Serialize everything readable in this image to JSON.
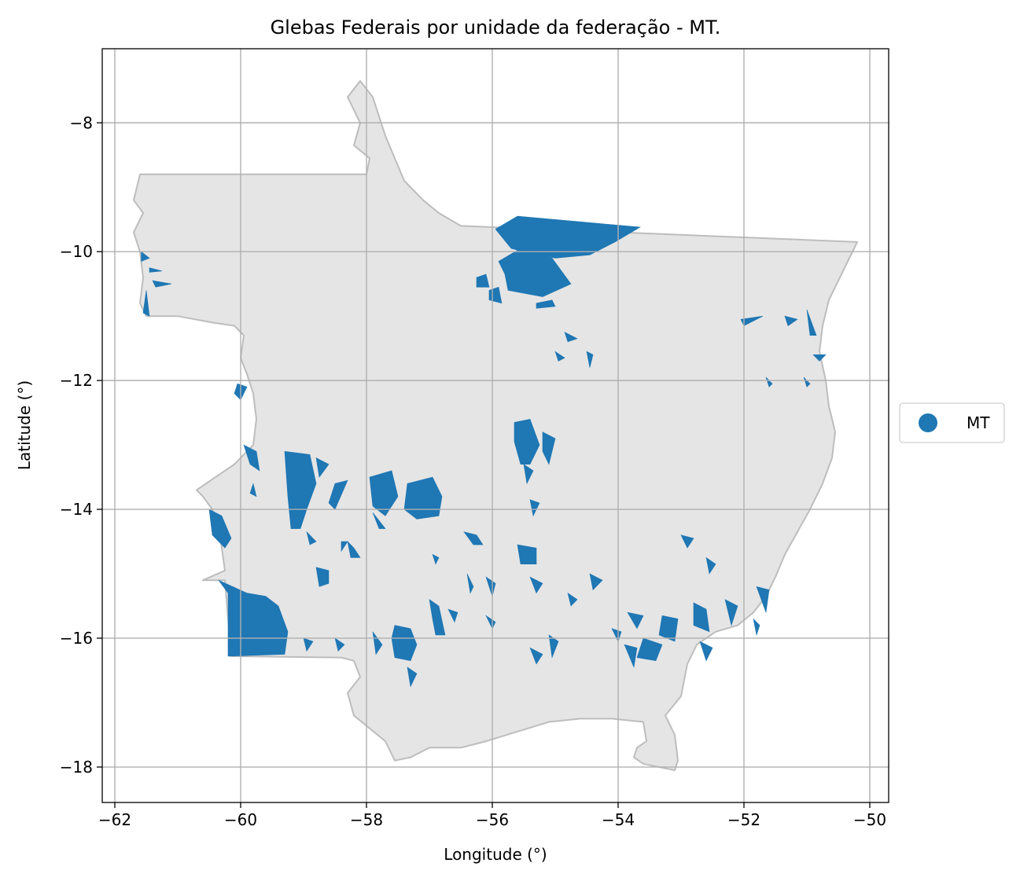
{
  "chart_data": {
    "type": "map",
    "title": "Glebas Federais por unidade da federação - MT.",
    "xlabel": "Longitude (°)",
    "ylabel": "Latitude (°)",
    "xlim": [
      -62.2,
      -49.7
    ],
    "ylim": [
      -18.55,
      -6.85
    ],
    "x_ticks": [
      -62,
      -60,
      -58,
      -56,
      -54,
      -52,
      -50
    ],
    "y_ticks": [
      -8,
      -10,
      -12,
      -14,
      -16,
      -18
    ],
    "x_tick_labels": [
      "−62",
      "−60",
      "−58",
      "−56",
      "−54",
      "−52",
      "−50"
    ],
    "y_tick_labels": [
      "−8",
      "−10",
      "−12",
      "−14",
      "−16",
      "−18"
    ],
    "grid": true,
    "legend_position": "right",
    "colors": {
      "state_fill": "#e5e5e5",
      "state_edge": "#bdbdbd",
      "glebas": "#1f77b4",
      "grid": "#b0b0b0"
    },
    "series": [
      {
        "name": "MT"
      }
    ],
    "state_outline": [
      [
        -61.6,
        -8.8
      ],
      [
        -58.0,
        -8.8
      ],
      [
        -57.95,
        -8.55
      ],
      [
        -58.2,
        -8.35
      ],
      [
        -58.1,
        -8.0
      ],
      [
        -58.3,
        -7.6
      ],
      [
        -58.1,
        -7.35
      ],
      [
        -57.9,
        -7.6
      ],
      [
        -57.7,
        -8.2
      ],
      [
        -57.4,
        -8.9
      ],
      [
        -57.1,
        -9.2
      ],
      [
        -56.85,
        -9.4
      ],
      [
        -56.5,
        -9.6
      ],
      [
        -50.2,
        -9.85
      ],
      [
        -50.35,
        -10.15
      ],
      [
        -50.5,
        -10.45
      ],
      [
        -50.65,
        -10.75
      ],
      [
        -50.75,
        -11.15
      ],
      [
        -50.8,
        -11.55
      ],
      [
        -50.7,
        -12.0
      ],
      [
        -50.65,
        -12.4
      ],
      [
        -50.55,
        -12.8
      ],
      [
        -50.6,
        -13.2
      ],
      [
        -50.75,
        -13.6
      ],
      [
        -50.95,
        -14.0
      ],
      [
        -51.15,
        -14.35
      ],
      [
        -51.35,
        -14.7
      ],
      [
        -51.5,
        -15.05
      ],
      [
        -51.65,
        -15.35
      ],
      [
        -51.85,
        -15.6
      ],
      [
        -52.1,
        -15.8
      ],
      [
        -52.45,
        -15.9
      ],
      [
        -52.75,
        -16.1
      ],
      [
        -52.9,
        -16.4
      ],
      [
        -53.0,
        -16.9
      ],
      [
        -53.25,
        -17.2
      ],
      [
        -53.1,
        -17.5
      ],
      [
        -53.05,
        -17.9
      ],
      [
        -53.1,
        -18.05
      ],
      [
        -53.6,
        -17.95
      ],
      [
        -53.75,
        -17.85
      ],
      [
        -53.7,
        -17.7
      ],
      [
        -53.55,
        -17.6
      ],
      [
        -53.6,
        -17.3
      ],
      [
        -54.1,
        -17.25
      ],
      [
        -54.6,
        -17.25
      ],
      [
        -55.1,
        -17.3
      ],
      [
        -55.6,
        -17.45
      ],
      [
        -56.1,
        -17.6
      ],
      [
        -56.5,
        -17.7
      ],
      [
        -57.0,
        -17.7
      ],
      [
        -57.3,
        -17.85
      ],
      [
        -57.55,
        -17.9
      ],
      [
        -57.7,
        -17.6
      ],
      [
        -57.95,
        -17.4
      ],
      [
        -58.2,
        -17.2
      ],
      [
        -58.3,
        -16.85
      ],
      [
        -58.1,
        -16.6
      ],
      [
        -58.2,
        -16.35
      ],
      [
        -58.4,
        -16.3
      ],
      [
        -60.15,
        -16.28
      ],
      [
        -60.25,
        -15.1
      ],
      [
        -60.6,
        -15.1
      ],
      [
        -60.25,
        -14.95
      ],
      [
        -60.3,
        -14.6
      ],
      [
        -60.35,
        -14.3
      ],
      [
        -60.45,
        -14.0
      ],
      [
        -60.6,
        -13.8
      ],
      [
        -60.7,
        -13.7
      ],
      [
        -60.4,
        -13.5
      ],
      [
        -60.1,
        -13.3
      ],
      [
        -59.8,
        -13.0
      ],
      [
        -59.75,
        -12.6
      ],
      [
        -59.8,
        -12.2
      ],
      [
        -59.9,
        -11.9
      ],
      [
        -60.0,
        -11.65
      ],
      [
        -59.95,
        -11.3
      ],
      [
        -60.1,
        -11.15
      ],
      [
        -60.45,
        -11.1
      ],
      [
        -61.0,
        -11.0
      ],
      [
        -61.5,
        -11.0
      ],
      [
        -61.6,
        -10.8
      ],
      [
        -61.55,
        -10.4
      ],
      [
        -61.6,
        -10.0
      ],
      [
        -61.7,
        -9.7
      ],
      [
        -61.55,
        -9.4
      ],
      [
        -61.7,
        -9.2
      ]
    ],
    "glebas": [
      [
        [
          -55.95,
          -9.65
        ],
        [
          -55.6,
          -9.45
        ],
        [
          -53.65,
          -9.62
        ],
        [
          -54.05,
          -9.85
        ],
        [
          -54.45,
          -10.05
        ],
        [
          -55.0,
          -10.1
        ],
        [
          -55.5,
          -10.0
        ],
        [
          -55.7,
          -9.95
        ]
      ],
      [
        [
          -55.9,
          -10.15
        ],
        [
          -55.55,
          -9.95
        ],
        [
          -55.05,
          -10.1
        ],
        [
          -54.75,
          -10.5
        ],
        [
          -55.2,
          -10.7
        ],
        [
          -55.75,
          -10.6
        ],
        [
          -55.8,
          -10.35
        ]
      ],
      [
        [
          -56.25,
          -10.4
        ],
        [
          -56.1,
          -10.35
        ],
        [
          -56.05,
          -10.55
        ],
        [
          -56.25,
          -10.55
        ]
      ],
      [
        [
          -56.05,
          -10.6
        ],
        [
          -55.9,
          -10.55
        ],
        [
          -55.85,
          -10.8
        ],
        [
          -56.05,
          -10.75
        ]
      ],
      [
        [
          -55.3,
          -10.8
        ],
        [
          -55.05,
          -10.75
        ],
        [
          -55.0,
          -10.85
        ],
        [
          -55.3,
          -10.88
        ]
      ],
      [
        [
          -61.58,
          -10.0
        ],
        [
          -61.45,
          -10.1
        ],
        [
          -61.58,
          -10.15
        ]
      ],
      [
        [
          -61.4,
          -10.45
        ],
        [
          -61.1,
          -10.5
        ],
        [
          -61.35,
          -10.55
        ]
      ],
      [
        [
          -61.5,
          -10.6
        ],
        [
          -61.45,
          -11.0
        ],
        [
          -61.55,
          -10.95
        ]
      ],
      [
        [
          -61.45,
          -10.25
        ],
        [
          -61.25,
          -10.3
        ],
        [
          -61.45,
          -10.32
        ]
      ],
      [
        [
          -60.05,
          -12.05
        ],
        [
          -59.9,
          -12.1
        ],
        [
          -60.0,
          -12.3
        ],
        [
          -60.1,
          -12.2
        ]
      ],
      [
        [
          -59.95,
          -13.0
        ],
        [
          -59.75,
          -13.1
        ],
        [
          -59.7,
          -13.4
        ],
        [
          -59.85,
          -13.3
        ]
      ],
      [
        [
          -59.8,
          -13.6
        ],
        [
          -59.75,
          -13.8
        ],
        [
          -59.85,
          -13.75
        ]
      ],
      [
        [
          -59.3,
          -13.1
        ],
        [
          -58.9,
          -13.15
        ],
        [
          -58.8,
          -13.6
        ],
        [
          -58.95,
          -14.0
        ],
        [
          -59.05,
          -14.3
        ],
        [
          -59.2,
          -14.3
        ],
        [
          -59.25,
          -13.8
        ]
      ],
      [
        [
          -58.95,
          -14.35
        ],
        [
          -58.8,
          -14.5
        ],
        [
          -58.9,
          -14.55
        ]
      ],
      [
        [
          -58.8,
          -13.2
        ],
        [
          -58.6,
          -13.3
        ],
        [
          -58.75,
          -13.5
        ]
      ],
      [
        [
          -58.5,
          -13.6
        ],
        [
          -58.3,
          -13.55
        ],
        [
          -58.5,
          -14.0
        ],
        [
          -58.6,
          -13.9
        ]
      ],
      [
        [
          -60.5,
          -14.0
        ],
        [
          -60.3,
          -14.1
        ],
        [
          -60.15,
          -14.45
        ],
        [
          -60.25,
          -14.6
        ],
        [
          -60.45,
          -14.4
        ]
      ],
      [
        [
          -58.8,
          -14.9
        ],
        [
          -58.6,
          -14.95
        ],
        [
          -58.6,
          -15.15
        ],
        [
          -58.75,
          -15.2
        ]
      ],
      [
        [
          -58.3,
          -14.5
        ],
        [
          -58.2,
          -14.6
        ],
        [
          -58.1,
          -14.75
        ],
        [
          -58.25,
          -14.75
        ]
      ],
      [
        [
          -57.95,
          -13.5
        ],
        [
          -57.6,
          -13.4
        ],
        [
          -57.5,
          -13.8
        ],
        [
          -57.7,
          -14.1
        ],
        [
          -57.9,
          -13.95
        ]
      ],
      [
        [
          -57.9,
          -14.05
        ],
        [
          -57.7,
          -14.3
        ],
        [
          -57.8,
          -14.3
        ]
      ],
      [
        [
          -57.35,
          -13.6
        ],
        [
          -56.95,
          -13.5
        ],
        [
          -56.8,
          -13.8
        ],
        [
          -56.85,
          -14.1
        ],
        [
          -57.2,
          -14.15
        ],
        [
          -57.4,
          -14.0
        ]
      ],
      [
        [
          -55.65,
          -12.65
        ],
        [
          -55.4,
          -12.6
        ],
        [
          -55.25,
          -13.0
        ],
        [
          -55.4,
          -13.3
        ],
        [
          -55.55,
          -13.3
        ],
        [
          -55.65,
          -12.95
        ]
      ],
      [
        [
          -55.5,
          -13.3
        ],
        [
          -55.35,
          -13.4
        ],
        [
          -55.45,
          -13.6
        ]
      ],
      [
        [
          -55.2,
          -12.8
        ],
        [
          -55.0,
          -12.9
        ],
        [
          -55.1,
          -13.3
        ],
        [
          -55.2,
          -13.1
        ]
      ],
      [
        [
          -60.35,
          -15.1
        ],
        [
          -60.2,
          -15.3
        ],
        [
          -60.2,
          -16.28
        ],
        [
          -59.3,
          -16.25
        ],
        [
          -59.25,
          -15.9
        ],
        [
          -59.4,
          -15.5
        ],
        [
          -59.6,
          -15.35
        ],
        [
          -59.9,
          -15.3
        ]
      ],
      [
        [
          -58.3,
          -14.5
        ],
        [
          -58.4,
          -14.5
        ],
        [
          -58.4,
          -14.65
        ]
      ],
      [
        [
          -57.55,
          -15.8
        ],
        [
          -57.3,
          -15.85
        ],
        [
          -57.2,
          -16.1
        ],
        [
          -57.3,
          -16.35
        ],
        [
          -57.55,
          -16.3
        ],
        [
          -57.6,
          -16.0
        ]
      ],
      [
        [
          -57.9,
          -15.9
        ],
        [
          -57.75,
          -16.1
        ],
        [
          -57.85,
          -16.25
        ]
      ],
      [
        [
          -57.35,
          -16.45
        ],
        [
          -57.2,
          -16.55
        ],
        [
          -57.3,
          -16.75
        ]
      ],
      [
        [
          -57.0,
          -15.4
        ],
        [
          -56.85,
          -15.5
        ],
        [
          -56.75,
          -15.95
        ],
        [
          -56.9,
          -15.95
        ],
        [
          -56.95,
          -15.7
        ]
      ],
      [
        [
          -56.45,
          -14.35
        ],
        [
          -56.25,
          -14.4
        ],
        [
          -56.15,
          -14.55
        ],
        [
          -56.3,
          -14.55
        ]
      ],
      [
        [
          -56.1,
          -15.05
        ],
        [
          -55.95,
          -15.15
        ],
        [
          -56.0,
          -15.35
        ]
      ],
      [
        [
          -55.6,
          -14.55
        ],
        [
          -55.3,
          -14.6
        ],
        [
          -55.3,
          -14.85
        ],
        [
          -55.55,
          -14.85
        ]
      ],
      [
        [
          -55.4,
          -15.05
        ],
        [
          -55.2,
          -15.15
        ],
        [
          -55.3,
          -15.3
        ]
      ],
      [
        [
          -55.1,
          -15.95
        ],
        [
          -54.95,
          -16.05
        ],
        [
          -55.05,
          -16.3
        ]
      ],
      [
        [
          -55.4,
          -16.15
        ],
        [
          -55.2,
          -16.25
        ],
        [
          -55.3,
          -16.4
        ]
      ],
      [
        [
          -54.8,
          -15.3
        ],
        [
          -54.65,
          -15.4
        ],
        [
          -54.75,
          -15.5
        ]
      ],
      [
        [
          -54.45,
          -15.0
        ],
        [
          -54.25,
          -15.1
        ],
        [
          -54.4,
          -15.25
        ]
      ],
      [
        [
          -53.6,
          -16.0
        ],
        [
          -53.3,
          -16.1
        ],
        [
          -53.4,
          -16.35
        ],
        [
          -53.7,
          -16.3
        ]
      ],
      [
        [
          -53.3,
          -15.65
        ],
        [
          -53.05,
          -15.7
        ],
        [
          -53.1,
          -16.05
        ],
        [
          -53.35,
          -15.95
        ]
      ],
      [
        [
          -53.85,
          -15.6
        ],
        [
          -53.6,
          -15.65
        ],
        [
          -53.7,
          -15.85
        ]
      ],
      [
        [
          -52.8,
          -15.45
        ],
        [
          -52.6,
          -15.55
        ],
        [
          -52.55,
          -15.9
        ],
        [
          -52.8,
          -15.8
        ]
      ],
      [
        [
          -52.3,
          -15.4
        ],
        [
          -52.1,
          -15.5
        ],
        [
          -52.2,
          -15.8
        ]
      ],
      [
        [
          -52.7,
          -16.05
        ],
        [
          -52.5,
          -16.15
        ],
        [
          -52.6,
          -16.35
        ]
      ],
      [
        [
          -53.9,
          -16.1
        ],
        [
          -53.7,
          -16.15
        ],
        [
          -53.75,
          -16.45
        ]
      ],
      [
        [
          -52.6,
          -14.75
        ],
        [
          -52.45,
          -14.85
        ],
        [
          -52.55,
          -15.0
        ]
      ],
      [
        [
          -53.0,
          -14.4
        ],
        [
          -52.8,
          -14.45
        ],
        [
          -52.9,
          -14.6
        ]
      ],
      [
        [
          -51.8,
          -15.2
        ],
        [
          -51.6,
          -15.25
        ],
        [
          -51.65,
          -15.6
        ]
      ],
      [
        [
          -51.85,
          -15.7
        ],
        [
          -51.75,
          -15.8
        ],
        [
          -51.8,
          -15.95
        ]
      ],
      [
        [
          -52.05,
          -11.05
        ],
        [
          -51.7,
          -11.0
        ],
        [
          -52.0,
          -11.15
        ]
      ],
      [
        [
          -51.35,
          -11.0
        ],
        [
          -51.15,
          -11.05
        ],
        [
          -51.3,
          -11.15
        ]
      ],
      [
        [
          -51.0,
          -10.9
        ],
        [
          -50.85,
          -11.3
        ],
        [
          -50.95,
          -11.3
        ]
      ],
      [
        [
          -50.9,
          -11.6
        ],
        [
          -50.7,
          -11.6
        ],
        [
          -50.8,
          -11.7
        ]
      ],
      [
        [
          -51.05,
          -11.95
        ],
        [
          -50.95,
          -12.05
        ],
        [
          -51.0,
          -12.1
        ]
      ],
      [
        [
          -51.65,
          -11.95
        ],
        [
          -51.55,
          -12.05
        ],
        [
          -51.6,
          -12.1
        ]
      ],
      [
        [
          -56.7,
          -15.55
        ],
        [
          -56.55,
          -15.6
        ],
        [
          -56.6,
          -15.75
        ]
      ],
      [
        [
          -56.1,
          -15.65
        ],
        [
          -55.95,
          -15.75
        ],
        [
          -56.0,
          -15.85
        ]
      ],
      [
        [
          -56.4,
          -15.0
        ],
        [
          -56.3,
          -15.2
        ],
        [
          -56.35,
          -15.3
        ]
      ],
      [
        [
          -55.4,
          -13.85
        ],
        [
          -55.25,
          -13.9
        ],
        [
          -55.35,
          -14.1
        ]
      ],
      [
        [
          -54.85,
          -11.25
        ],
        [
          -54.65,
          -11.35
        ],
        [
          -54.8,
          -11.4
        ]
      ],
      [
        [
          -55.0,
          -11.55
        ],
        [
          -54.85,
          -11.65
        ],
        [
          -54.95,
          -11.7
        ]
      ],
      [
        [
          -54.5,
          -11.55
        ],
        [
          -54.4,
          -11.6
        ],
        [
          -54.45,
          -11.8
        ]
      ],
      [
        [
          -56.95,
          -14.7
        ],
        [
          -56.85,
          -14.75
        ],
        [
          -56.9,
          -14.85
        ]
      ],
      [
        [
          -58.5,
          -16.0
        ],
        [
          -58.35,
          -16.1
        ],
        [
          -58.45,
          -16.2
        ]
      ],
      [
        [
          -59.0,
          -16.0
        ],
        [
          -58.85,
          -16.05
        ],
        [
          -58.95,
          -16.2
        ]
      ],
      [
        [
          -54.1,
          -15.85
        ],
        [
          -53.95,
          -15.9
        ],
        [
          -54.0,
          -16.05
        ]
      ]
    ]
  }
}
